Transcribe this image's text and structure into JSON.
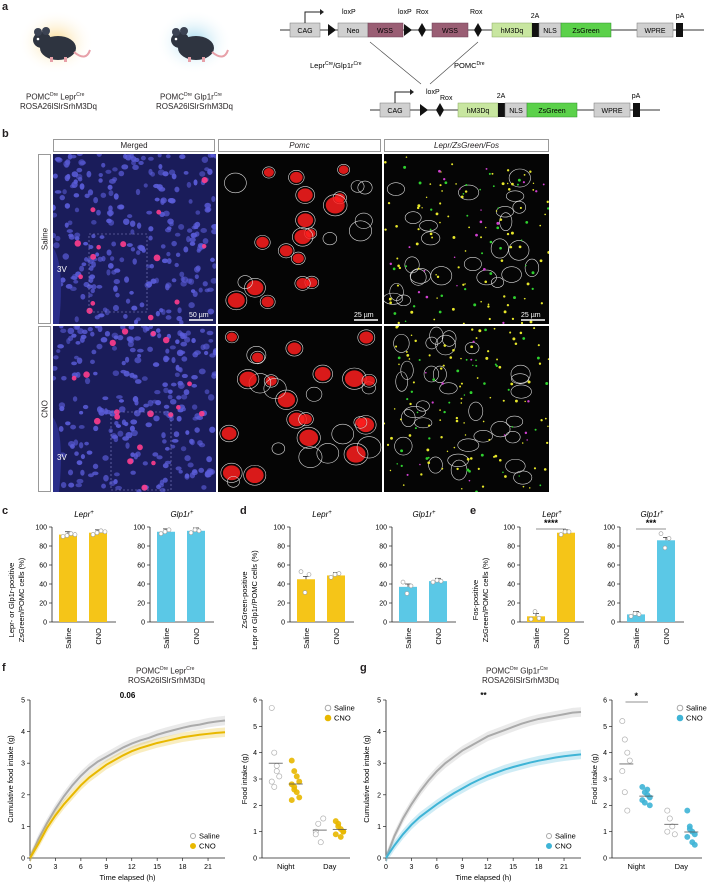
{
  "panel_a": {
    "letter": "a",
    "mouse1_line1": "POMC",
    "mouse1_sup1": "Dre",
    "mouse1_mid": " Lepr",
    "mouse1_sup2": "Cre",
    "mouse1_line2": "ROSA26lSlrSrhM3Dq",
    "mouse2_line1": "POMC",
    "mouse2_sup1": "Dre",
    "mouse2_mid": " Glp1r",
    "mouse2_sup2": "Cre",
    "mouse2_line2": "ROSA26lSlrSrhM3Dq",
    "construct_top": {
      "cag": "CAG",
      "loxp1": "loxP",
      "neo": "Neo",
      "wss1": "WSS",
      "loxp2": "loxP",
      "rox1": "Rox",
      "wss2": "WSS",
      "rox2": "Rox",
      "hm3dq": "hM3Dq",
      "t2a": "2A",
      "nls": "NLS",
      "zsgreen": "ZsGreen",
      "wpre": "WPRE",
      "pa": "pA"
    },
    "recomb_left": "Lepr",
    "recomb_left_sup": "Cre",
    "recomb_left2": "/Glp1r",
    "recomb_left2_sup": "Cre",
    "recomb_right": "POMC",
    "recomb_right_sup": "Dre",
    "construct_bottom": {
      "cag": "CAG",
      "loxp": "loxP",
      "rox": "Rox",
      "hm3dq": "hM3Dq",
      "t2a": "2A",
      "nls": "NLS",
      "zsgreen": "ZsGreen",
      "wpre": "WPRE",
      "pa": "pA"
    }
  },
  "panel_b": {
    "letter": "b",
    "col_headers": [
      "Merged",
      "Pomc",
      "Lepr/ZsGreen/Fos"
    ],
    "row_labels": [
      "Saline",
      "CNO"
    ],
    "label_3v": "3V",
    "scale_50": "50 µm",
    "scale_25": "25 µm"
  },
  "colors": {
    "yellow": "#f5c518",
    "blue": "#5bc8e6",
    "dapi": "#3b3fae",
    "pomc": "#ff2020",
    "zsgreen": "#2fd12f"
  },
  "panel_c": {
    "letter": "c",
    "ylabel_line1": "Lepr- or Glp1r-positive",
    "ylabel_line2": "ZsGreen/POMC cells (%)"
  },
  "panel_d": {
    "letter": "d",
    "ylabel_line1": "ZsGreen-positive",
    "ylabel_line2": "Lepr or Glp1r/POMC cells (%)"
  },
  "panel_e": {
    "letter": "e",
    "ylabel_line1": "Fos-positive",
    "ylabel_line2": "ZsGreen/POMC cells (%)"
  },
  "panel_f": {
    "letter": "f",
    "title1": "POMC",
    "title1_sup": "Dre",
    "title1_mid": " Lepr",
    "title1_sup2": "Cre",
    "title2": "ROSA26lSlrSrhM3Dq",
    "pval": "0.06"
  },
  "panel_g": {
    "letter": "g",
    "title1": "POMC",
    "title1_sup": "Dre",
    "title1_mid": " Glp1r",
    "title1_sup2": "Cre",
    "title2": "ROSA26lSlrSrhM3Dq",
    "pval": "**",
    "pval2": "*"
  },
  "chart_data": [
    {
      "id": "c-lepr",
      "type": "bar",
      "title": "Lepr+",
      "categories": [
        "Saline",
        "CNO"
      ],
      "values": [
        92,
        94
      ],
      "color": "yellow",
      "ylim": [
        0,
        100
      ],
      "yticks": [
        0,
        20,
        40,
        60,
        80,
        100
      ],
      "points": [
        [
          90,
          91,
          93,
          92
        ],
        [
          92,
          94,
          96,
          95
        ]
      ]
    },
    {
      "id": "c-glp1r",
      "type": "bar",
      "title": "Glp1r+",
      "categories": [
        "Saline",
        "CNO"
      ],
      "values": [
        95,
        96
      ],
      "color": "blue",
      "ylim": [
        0,
        100
      ],
      "yticks": [
        0,
        20,
        40,
        60,
        80,
        100
      ],
      "points": [
        [
          93,
          95,
          97
        ],
        [
          94,
          97,
          96
        ]
      ]
    },
    {
      "id": "d-lepr",
      "type": "bar",
      "title": "Lepr+",
      "categories": [
        "Saline",
        "CNO"
      ],
      "values": [
        45,
        49
      ],
      "color": "yellow",
      "ylim": [
        0,
        100
      ],
      "yticks": [
        0,
        20,
        40,
        60,
        80,
        100
      ],
      "points": [
        [
          53,
          31,
          50
        ],
        [
          47,
          50,
          51
        ]
      ]
    },
    {
      "id": "d-glp1r",
      "type": "bar",
      "title": "Glp1r+",
      "categories": [
        "Saline",
        "CNO"
      ],
      "values": [
        37,
        43
      ],
      "color": "blue",
      "ylim": [
        0,
        100
      ],
      "yticks": [
        0,
        20,
        40,
        60,
        80,
        100
      ],
      "points": [
        [
          42,
          30,
          38
        ],
        [
          42,
          44,
          43
        ]
      ]
    },
    {
      "id": "e-lepr",
      "type": "bar",
      "title": "Lepr+",
      "categories": [
        "Saline",
        "CNO"
      ],
      "values": [
        6,
        94
      ],
      "color": "yellow",
      "ylim": [
        0,
        100
      ],
      "yticks": [
        0,
        20,
        40,
        60,
        80,
        100
      ],
      "points": [
        [
          3,
          11,
          4
        ],
        [
          92,
          95,
          95
        ]
      ],
      "sig": "****"
    },
    {
      "id": "e-glp1r",
      "type": "bar",
      "title": "Glp1r+",
      "categories": [
        "Saline",
        "CNO"
      ],
      "values": [
        8,
        86
      ],
      "color": "blue",
      "ylim": [
        0,
        100
      ],
      "yticks": [
        0,
        20,
        40,
        60,
        80,
        100
      ],
      "points": [
        [
          6,
          9,
          8
        ],
        [
          93,
          78,
          88
        ]
      ],
      "sig": "***"
    },
    {
      "id": "f-line",
      "type": "line",
      "xlabel": "Time elapsed (h)",
      "ylabel": "Cumulative food intake (g)",
      "xlim": [
        0,
        23
      ],
      "ylim": [
        0,
        5
      ],
      "xticks": [
        0,
        3,
        6,
        9,
        12,
        15,
        18,
        21
      ],
      "yticks": [
        0,
        1,
        2,
        3,
        4,
        5
      ],
      "series": [
        {
          "name": "Saline",
          "color": "#aaaaaa",
          "x": [
            0,
            1,
            2,
            3,
            4,
            5,
            6,
            7,
            8,
            9,
            10,
            11,
            12,
            13,
            14,
            15,
            16,
            17,
            18,
            19,
            20,
            21,
            22,
            23
          ],
          "y": [
            0,
            0.6,
            1.1,
            1.55,
            1.95,
            2.3,
            2.6,
            2.85,
            3.05,
            3.2,
            3.35,
            3.5,
            3.62,
            3.72,
            3.8,
            3.9,
            3.98,
            4.05,
            4.12,
            4.18,
            4.22,
            4.28,
            4.32,
            4.35
          ]
        },
        {
          "name": "CNO",
          "color": "#e8b800",
          "x": [
            0,
            1,
            2,
            3,
            4,
            5,
            6,
            7,
            8,
            9,
            10,
            11,
            12,
            13,
            14,
            15,
            16,
            17,
            18,
            19,
            20,
            21,
            22,
            23
          ],
          "y": [
            0,
            0.45,
            0.95,
            1.35,
            1.7,
            2.0,
            2.3,
            2.55,
            2.75,
            2.95,
            3.1,
            3.25,
            3.38,
            3.48,
            3.56,
            3.64,
            3.7,
            3.76,
            3.82,
            3.86,
            3.9,
            3.93,
            3.96,
            3.98
          ]
        }
      ]
    },
    {
      "id": "f-scatter",
      "type": "scatter",
      "ylabel": "Food intake (g)",
      "categories": [
        "Night",
        "Day"
      ],
      "ylim": [
        0,
        6
      ],
      "yticks": [
        0,
        1,
        2,
        3,
        4,
        5,
        6
      ],
      "series": [
        {
          "name": "Saline",
          "color": "#aaaaaa",
          "night": [
            5.7,
            4.0,
            3.3,
            3.1,
            2.9,
            2.7,
            3.5
          ],
          "day": [
            1.0,
            1.3,
            0.6,
            1.5,
            0.9
          ]
        },
        {
          "name": "CNO",
          "color": "#e8b800",
          "night": [
            3.7,
            3.3,
            3.1,
            2.9,
            2.8,
            2.6,
            2.5,
            2.3,
            2.2,
            2.7
          ],
          "day": [
            1.4,
            1.3,
            1.1,
            1.0,
            0.9,
            1.2,
            0.8,
            1.0
          ]
        }
      ]
    },
    {
      "id": "g-line",
      "type": "line",
      "xlabel": "Time elapsed (h)",
      "ylabel": "Cumulative food intake (g)",
      "xlim": [
        0,
        23
      ],
      "ylim": [
        0,
        5
      ],
      "xticks": [
        0,
        3,
        6,
        9,
        12,
        15,
        18,
        21
      ],
      "yticks": [
        0,
        1,
        2,
        3,
        4,
        5
      ],
      "series": [
        {
          "name": "Saline",
          "color": "#aaaaaa",
          "x": [
            0,
            1,
            2,
            3,
            4,
            5,
            6,
            7,
            8,
            9,
            10,
            11,
            12,
            13,
            14,
            15,
            16,
            17,
            18,
            19,
            20,
            21,
            22,
            23
          ],
          "y": [
            0,
            0.7,
            1.25,
            1.7,
            2.1,
            2.45,
            2.75,
            3.0,
            3.2,
            3.4,
            3.55,
            3.7,
            3.85,
            3.95,
            4.05,
            4.15,
            4.25,
            4.33,
            4.4,
            4.45,
            4.5,
            4.55,
            4.6,
            4.62
          ]
        },
        {
          "name": "CNO",
          "color": "#3fb4d6",
          "x": [
            0,
            1,
            2,
            3,
            4,
            5,
            6,
            7,
            8,
            9,
            10,
            11,
            12,
            13,
            14,
            15,
            16,
            17,
            18,
            19,
            20,
            21,
            22,
            23
          ],
          "y": [
            0,
            0.4,
            0.75,
            1.05,
            1.3,
            1.5,
            1.7,
            1.88,
            2.05,
            2.2,
            2.35,
            2.48,
            2.6,
            2.7,
            2.8,
            2.88,
            2.95,
            3.02,
            3.08,
            3.13,
            3.18,
            3.22,
            3.25,
            3.28
          ]
        }
      ]
    },
    {
      "id": "g-scatter",
      "type": "scatter",
      "ylabel": "Food intake (g)",
      "categories": [
        "Night",
        "Day"
      ],
      "ylim": [
        0,
        6
      ],
      "yticks": [
        0,
        1,
        2,
        3,
        4,
        5,
        6
      ],
      "series": [
        {
          "name": "Saline",
          "color": "#aaaaaa",
          "night": [
            5.2,
            4.5,
            4.0,
            3.7,
            3.3,
            2.5,
            1.8
          ],
          "day": [
            1.8,
            1.5,
            1.2,
            0.9,
            1.0
          ]
        },
        {
          "name": "CNO",
          "color": "#3fb4d6",
          "night": [
            2.7,
            2.5,
            2.4,
            2.3,
            2.2,
            2.1,
            2.6,
            2.0
          ],
          "day": [
            1.8,
            1.2,
            1.0,
            0.9,
            0.8,
            1.1,
            0.6,
            0.5
          ]
        }
      ]
    }
  ]
}
